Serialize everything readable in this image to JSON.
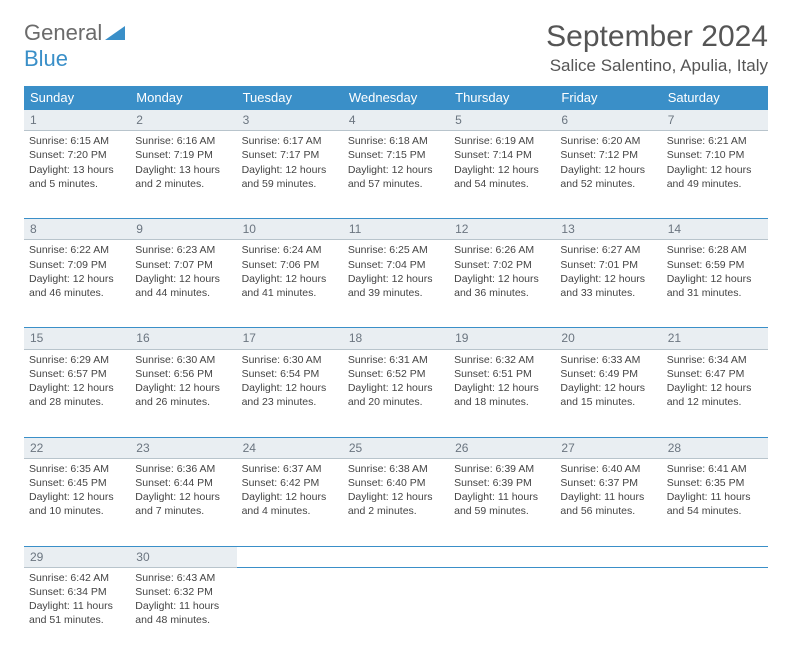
{
  "logo": {
    "general": "General",
    "blue": "Blue"
  },
  "title": "September 2024",
  "location": "Salice Salentino, Apulia, Italy",
  "colors": {
    "header_bg": "#3a8fc8",
    "header_text": "#ffffff",
    "daynum_bg": "#e9eef2",
    "daynum_text": "#6b7580",
    "cell_text": "#444444",
    "divider": "#3a8fc8",
    "page_bg": "#ffffff"
  },
  "weekdays": [
    "Sunday",
    "Monday",
    "Tuesday",
    "Wednesday",
    "Thursday",
    "Friday",
    "Saturday"
  ],
  "weeks": [
    {
      "nums": [
        "1",
        "2",
        "3",
        "4",
        "5",
        "6",
        "7"
      ],
      "cells": [
        [
          "Sunrise: 6:15 AM",
          "Sunset: 7:20 PM",
          "Daylight: 13 hours",
          "and 5 minutes."
        ],
        [
          "Sunrise: 6:16 AM",
          "Sunset: 7:19 PM",
          "Daylight: 13 hours",
          "and 2 minutes."
        ],
        [
          "Sunrise: 6:17 AM",
          "Sunset: 7:17 PM",
          "Daylight: 12 hours",
          "and 59 minutes."
        ],
        [
          "Sunrise: 6:18 AM",
          "Sunset: 7:15 PM",
          "Daylight: 12 hours",
          "and 57 minutes."
        ],
        [
          "Sunrise: 6:19 AM",
          "Sunset: 7:14 PM",
          "Daylight: 12 hours",
          "and 54 minutes."
        ],
        [
          "Sunrise: 6:20 AM",
          "Sunset: 7:12 PM",
          "Daylight: 12 hours",
          "and 52 minutes."
        ],
        [
          "Sunrise: 6:21 AM",
          "Sunset: 7:10 PM",
          "Daylight: 12 hours",
          "and 49 minutes."
        ]
      ]
    },
    {
      "nums": [
        "8",
        "9",
        "10",
        "11",
        "12",
        "13",
        "14"
      ],
      "cells": [
        [
          "Sunrise: 6:22 AM",
          "Sunset: 7:09 PM",
          "Daylight: 12 hours",
          "and 46 minutes."
        ],
        [
          "Sunrise: 6:23 AM",
          "Sunset: 7:07 PM",
          "Daylight: 12 hours",
          "and 44 minutes."
        ],
        [
          "Sunrise: 6:24 AM",
          "Sunset: 7:06 PM",
          "Daylight: 12 hours",
          "and 41 minutes."
        ],
        [
          "Sunrise: 6:25 AM",
          "Sunset: 7:04 PM",
          "Daylight: 12 hours",
          "and 39 minutes."
        ],
        [
          "Sunrise: 6:26 AM",
          "Sunset: 7:02 PM",
          "Daylight: 12 hours",
          "and 36 minutes."
        ],
        [
          "Sunrise: 6:27 AM",
          "Sunset: 7:01 PM",
          "Daylight: 12 hours",
          "and 33 minutes."
        ],
        [
          "Sunrise: 6:28 AM",
          "Sunset: 6:59 PM",
          "Daylight: 12 hours",
          "and 31 minutes."
        ]
      ]
    },
    {
      "nums": [
        "15",
        "16",
        "17",
        "18",
        "19",
        "20",
        "21"
      ],
      "cells": [
        [
          "Sunrise: 6:29 AM",
          "Sunset: 6:57 PM",
          "Daylight: 12 hours",
          "and 28 minutes."
        ],
        [
          "Sunrise: 6:30 AM",
          "Sunset: 6:56 PM",
          "Daylight: 12 hours",
          "and 26 minutes."
        ],
        [
          "Sunrise: 6:30 AM",
          "Sunset: 6:54 PM",
          "Daylight: 12 hours",
          "and 23 minutes."
        ],
        [
          "Sunrise: 6:31 AM",
          "Sunset: 6:52 PM",
          "Daylight: 12 hours",
          "and 20 minutes."
        ],
        [
          "Sunrise: 6:32 AM",
          "Sunset: 6:51 PM",
          "Daylight: 12 hours",
          "and 18 minutes."
        ],
        [
          "Sunrise: 6:33 AM",
          "Sunset: 6:49 PM",
          "Daylight: 12 hours",
          "and 15 minutes."
        ],
        [
          "Sunrise: 6:34 AM",
          "Sunset: 6:47 PM",
          "Daylight: 12 hours",
          "and 12 minutes."
        ]
      ]
    },
    {
      "nums": [
        "22",
        "23",
        "24",
        "25",
        "26",
        "27",
        "28"
      ],
      "cells": [
        [
          "Sunrise: 6:35 AM",
          "Sunset: 6:45 PM",
          "Daylight: 12 hours",
          "and 10 minutes."
        ],
        [
          "Sunrise: 6:36 AM",
          "Sunset: 6:44 PM",
          "Daylight: 12 hours",
          "and 7 minutes."
        ],
        [
          "Sunrise: 6:37 AM",
          "Sunset: 6:42 PM",
          "Daylight: 12 hours",
          "and 4 minutes."
        ],
        [
          "Sunrise: 6:38 AM",
          "Sunset: 6:40 PM",
          "Daylight: 12 hours",
          "and 2 minutes."
        ],
        [
          "Sunrise: 6:39 AM",
          "Sunset: 6:39 PM",
          "Daylight: 11 hours",
          "and 59 minutes."
        ],
        [
          "Sunrise: 6:40 AM",
          "Sunset: 6:37 PM",
          "Daylight: 11 hours",
          "and 56 minutes."
        ],
        [
          "Sunrise: 6:41 AM",
          "Sunset: 6:35 PM",
          "Daylight: 11 hours",
          "and 54 minutes."
        ]
      ]
    },
    {
      "nums": [
        "29",
        "30",
        "",
        "",
        "",
        "",
        ""
      ],
      "cells": [
        [
          "Sunrise: 6:42 AM",
          "Sunset: 6:34 PM",
          "Daylight: 11 hours",
          "and 51 minutes."
        ],
        [
          "Sunrise: 6:43 AM",
          "Sunset: 6:32 PM",
          "Daylight: 11 hours",
          "and 48 minutes."
        ],
        [],
        [],
        [],
        [],
        []
      ]
    }
  ]
}
